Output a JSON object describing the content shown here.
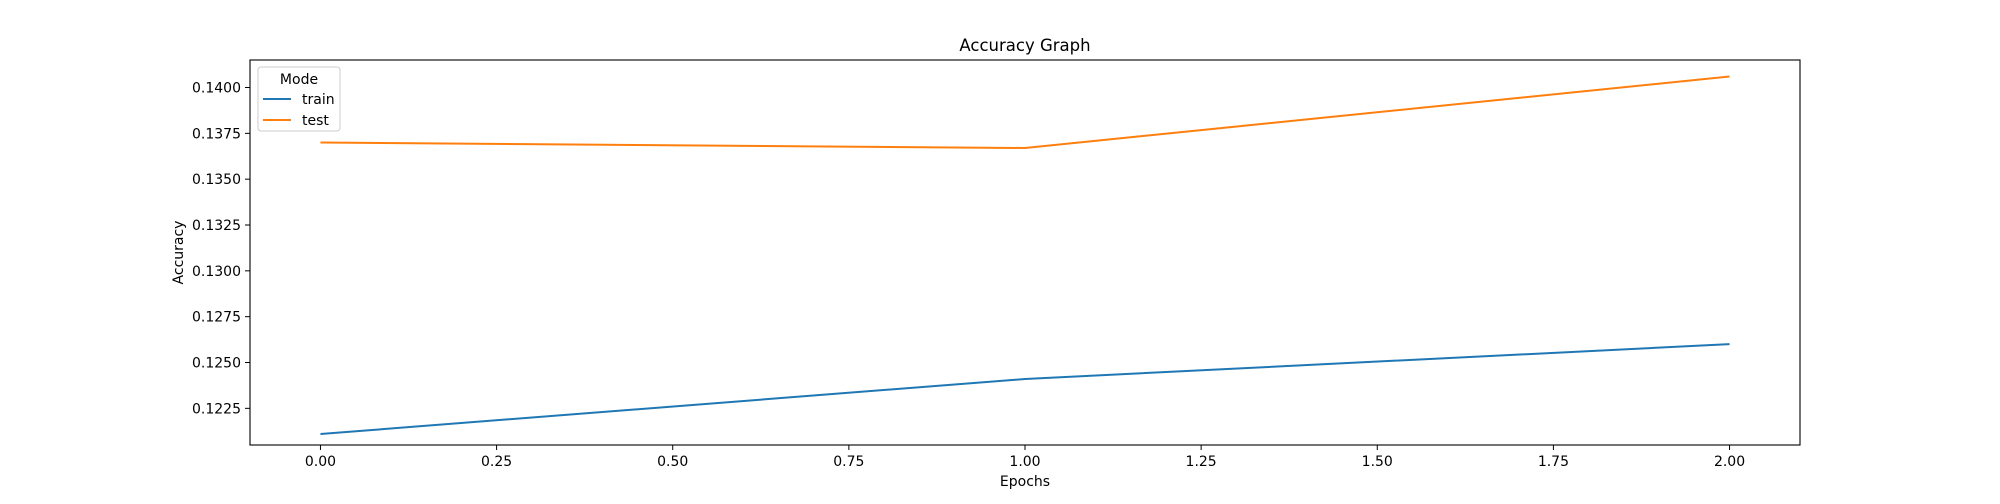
{
  "chart_data": {
    "type": "line",
    "title": "Accuracy Graph",
    "xlabel": "Epochs",
    "ylabel": "Accuracy",
    "x": [
      0,
      1,
      2
    ],
    "xlim": [
      -0.1,
      2.1
    ],
    "ylim": [
      0.1205,
      0.1415
    ],
    "xticks": [
      0.0,
      0.25,
      0.5,
      0.75,
      1.0,
      1.25,
      1.5,
      1.75,
      2.0
    ],
    "xtick_labels": [
      "0.00",
      "0.25",
      "0.50",
      "0.75",
      "1.00",
      "1.25",
      "1.50",
      "1.75",
      "2.00"
    ],
    "yticks": [
      0.1225,
      0.125,
      0.1275,
      0.13,
      0.1325,
      0.135,
      0.1375,
      0.14
    ],
    "ytick_labels": [
      "0.1225",
      "0.1250",
      "0.1275",
      "0.1300",
      "0.1325",
      "0.1350",
      "0.1375",
      "0.1400"
    ],
    "grid": false,
    "legend": {
      "title": "Mode",
      "placement": "top-left"
    },
    "series": [
      {
        "name": "train",
        "color": "#1f77b4",
        "values": [
          0.1211,
          0.1241,
          0.126
        ]
      },
      {
        "name": "test",
        "color": "#ff7f0e",
        "values": [
          0.137,
          0.1367,
          0.1406
        ]
      }
    ]
  }
}
